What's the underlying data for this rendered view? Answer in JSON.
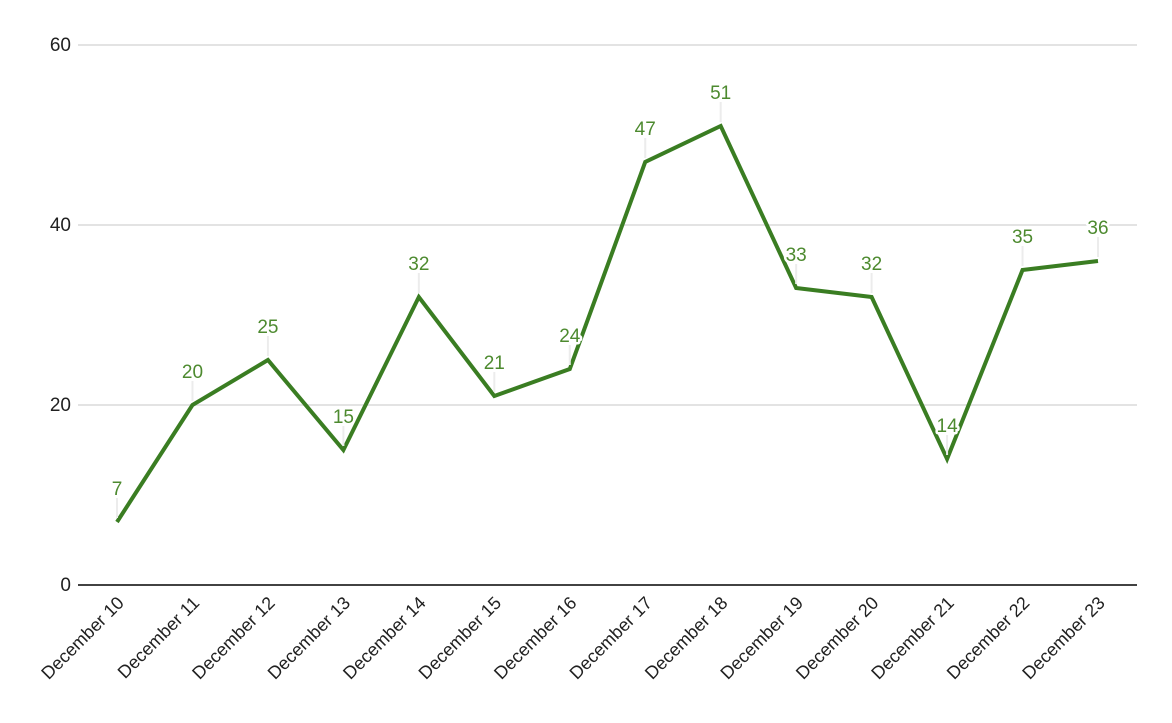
{
  "chart_data": {
    "type": "line",
    "title": "",
    "categories": [
      "December 10",
      "December 11",
      "December 12",
      "December 13",
      "December 14",
      "December 15",
      "December 16",
      "December 17",
      "December 18",
      "December 19",
      "December 20",
      "December 21",
      "December 22",
      "December 23"
    ],
    "values": [
      7,
      20,
      25,
      15,
      32,
      21,
      24,
      47,
      51,
      33,
      32,
      14,
      35,
      36
    ],
    "data_labels_shown": true,
    "xlabel": "",
    "ylabel": "",
    "ylim": [
      0,
      60
    ],
    "yticks": [
      0,
      20,
      40,
      60
    ],
    "grid": true,
    "legend_position": "none",
    "x_label_rotation_deg": -45
  },
  "colors": {
    "background": "#ffffff",
    "line": "#3a7d22",
    "data_label": "#4d8a2f",
    "axis_text": "#212121",
    "baseline": "#424242",
    "gridline": "#e3e3e3",
    "stem": "#ececec"
  }
}
